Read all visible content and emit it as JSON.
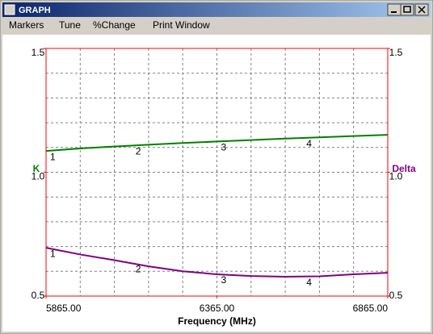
{
  "window": {
    "title": "GRAPH",
    "menu": [
      "Markers",
      "Tune",
      "%Change",
      "Print Window"
    ]
  },
  "chart_data": {
    "type": "line",
    "xlabel": "Frequency (MHz)",
    "ylabel": "K",
    "y2label": "Delta",
    "x": [
      5865,
      5965,
      6065,
      6165,
      6265,
      6365,
      6465,
      6565,
      6665,
      6765,
      6865
    ],
    "series": [
      {
        "name": "K",
        "color": "#008000",
        "values": [
          1.086,
          1.096,
          1.104,
          1.111,
          1.118,
          1.124,
          1.13,
          1.136,
          1.141,
          1.146,
          1.151
        ]
      },
      {
        "name": "Delta",
        "color": "#800080",
        "axis": "y2",
        "values": [
          0.695,
          0.668,
          0.645,
          0.62,
          0.6,
          0.588,
          0.581,
          0.578,
          0.58,
          0.588,
          0.594
        ]
      }
    ],
    "markers": {
      "labels": [
        "1",
        "2",
        "3",
        "4"
      ],
      "x": [
        5865,
        6115,
        6365,
        6615
      ]
    },
    "xlim": [
      5865,
      6865
    ],
    "xticks": [
      {
        "value": 5865,
        "label": "5865.00"
      },
      {
        "value": 6365,
        "label": "6365.00"
      },
      {
        "value": 6865,
        "label": "6865.00"
      }
    ],
    "ylim": [
      0.5,
      1.5
    ],
    "yticks": [
      1.5,
      {
        "value": 1.0,
        "label": "1.0"
      },
      0.5
    ],
    "y2lim": [
      0.5,
      1.5
    ],
    "y2ticks": [
      1.5,
      {
        "value": 1.0,
        "label": "1.0"
      },
      0.5
    ],
    "grid": true,
    "grid_divisions": 10,
    "frame_color": "#ff0000"
  }
}
